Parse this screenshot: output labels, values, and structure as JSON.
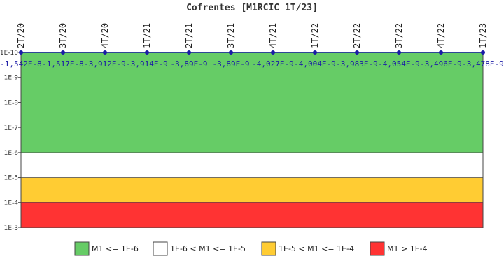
{
  "chart_data": {
    "type": "line",
    "title": "Cofrentes [M1RCIC 1T/23]",
    "xlabel": "",
    "ylabel": "",
    "categories": [
      "2T/20",
      "3T/20",
      "4T/20",
      "1T/21",
      "2T/21",
      "3T/21",
      "4T/21",
      "1T/22",
      "2T/22",
      "3T/22",
      "4T/22",
      "1T/23"
    ],
    "series": [
      {
        "values": [
          -1.542e-08,
          -1.517e-08,
          -3.912e-09,
          -3.914e-09,
          -3.89e-09,
          -3.89e-09,
          -4.027e-09,
          -4.004e-09,
          -3.983e-09,
          -4.054e-09,
          -3.496e-09,
          -3.478e-09
        ],
        "labels": [
          "-1,542E-8",
          "-1,517E-8",
          "-3,912E-9",
          "-3,914E-9",
          "-3,89E-9",
          "-3,89E-9",
          "-4,027E-9",
          "-4,004E-9",
          "-3,983E-9",
          "-4,054E-9",
          "-3,496E-9",
          "-3,478E-9"
        ],
        "color": "#1a1aa6"
      }
    ],
    "y_scale": "log",
    "y_axis_inverted": true,
    "ylim": [
      1e-10,
      0.001
    ],
    "y_ticks": [
      "1E-10",
      "1E-9",
      "1E-8",
      "1E-7",
      "1E-6",
      "1E-5",
      "1E-4",
      "1E-3"
    ],
    "y_tick_values": [
      1e-10,
      1e-09,
      1e-08,
      1e-07,
      1e-06,
      1e-05,
      0.0001,
      0.001
    ],
    "bands": [
      {
        "from": 1e-10,
        "to": 1e-06,
        "color": "#66cc66",
        "label": "M1 <= 1E-6"
      },
      {
        "from": 1e-06,
        "to": 1e-05,
        "color": "#ffffff",
        "label": "1E-6 < M1 <= 1E-5"
      },
      {
        "from": 1e-05,
        "to": 0.0001,
        "color": "#ffcc33",
        "label": "1E-5 < M1 <= 1E-4"
      },
      {
        "from": 0.0001,
        "to": 0.001,
        "color": "#ff3333",
        "label": "M1 > 1E-4"
      }
    ],
    "grid": false,
    "legend_position": "bottom"
  }
}
